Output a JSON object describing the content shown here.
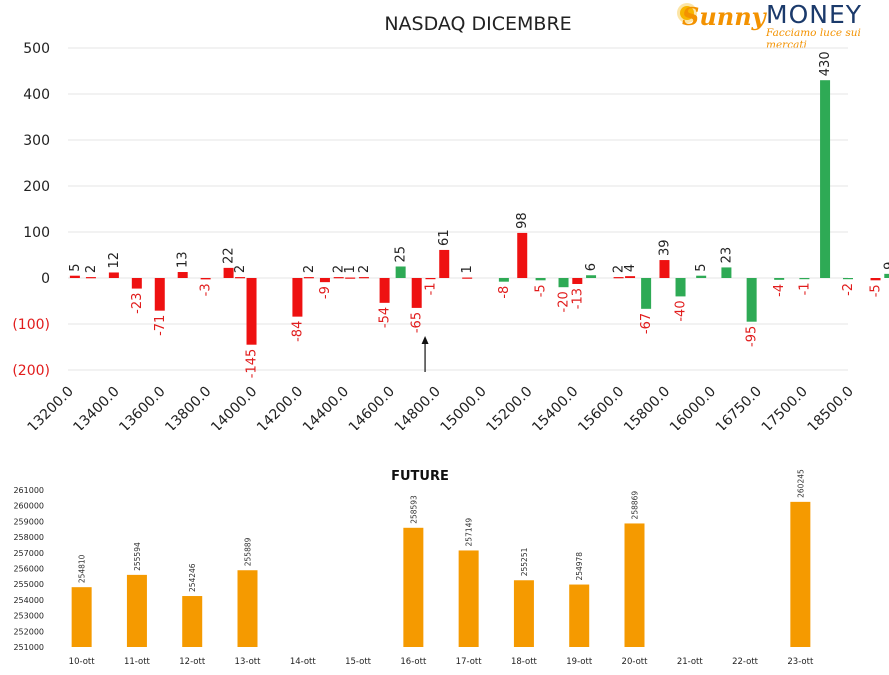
{
  "logo": {
    "script": "Sunny",
    "word": "MONEY",
    "tagline": "Facciamo luce sui mercati"
  },
  "colors": {
    "positive": "#2eaa55",
    "negative": "#ee1111",
    "future": "#f59a00",
    "grid": "#e6e6e6",
    "neg_tick": "#e11c1c"
  },
  "annotation": {
    "arrow": "up-arrow",
    "at_strike": "14800.0"
  },
  "chart_data": [
    {
      "type": "bar",
      "title": "NASDAQ DICEMBRE",
      "ylim": [
        -200,
        500
      ],
      "yticks": [
        {
          "value": 500,
          "label": "500"
        },
        {
          "value": 400,
          "label": "400"
        },
        {
          "value": 300,
          "label": "300"
        },
        {
          "value": 200,
          "label": "200"
        },
        {
          "value": 100,
          "label": "100"
        },
        {
          "value": 0,
          "label": "0"
        },
        {
          "value": -100,
          "label": "(100)"
        },
        {
          "value": -200,
          "label": "(200)"
        }
      ],
      "grid": true,
      "x_tick_labels": [
        "13200.0",
        "13400.0",
        "13600.0",
        "13800.0",
        "14000.0",
        "14200.0",
        "14400.0",
        "14600.0",
        "14800.0",
        "15000.0",
        "15200.0",
        "15400.0",
        "15600.0",
        "15800.0",
        "16000.0",
        "16750.0",
        "17500.0",
        "18500.0"
      ],
      "bars": [
        {
          "pos": 0.15,
          "value": 5,
          "label": "5",
          "color": "red"
        },
        {
          "pos": 0.5,
          "value": 2,
          "label": "2",
          "color": "red"
        },
        {
          "pos": 1.0,
          "value": 12,
          "label": "12",
          "color": "red"
        },
        {
          "pos": 1.5,
          "value": -23,
          "label": "-23",
          "color": "red"
        },
        {
          "pos": 2.0,
          "value": -71,
          "label": "-71",
          "color": "red"
        },
        {
          "pos": 2.5,
          "value": 13,
          "label": "13",
          "color": "red"
        },
        {
          "pos": 3.0,
          "value": -3,
          "label": "-3",
          "color": "red"
        },
        {
          "pos": 3.5,
          "value": 22,
          "label": "22",
          "color": "red"
        },
        {
          "pos": 3.75,
          "value": 2,
          "label": "2",
          "color": "red"
        },
        {
          "pos": 4.0,
          "value": -145,
          "label": "-145",
          "color": "red"
        },
        {
          "pos": 5.0,
          "value": -84,
          "label": "-84",
          "color": "red"
        },
        {
          "pos": 5.25,
          "value": 2,
          "label": "2",
          "color": "red"
        },
        {
          "pos": 5.6,
          "value": -9,
          "label": "-9",
          "color": "red"
        },
        {
          "pos": 5.9,
          "value": 2,
          "label": "2",
          "color": "red"
        },
        {
          "pos": 6.15,
          "value": 1,
          "label": "1",
          "color": "red"
        },
        {
          "pos": 6.45,
          "value": 2,
          "label": "2",
          "color": "red"
        },
        {
          "pos": 6.9,
          "value": -54,
          "label": "-54",
          "color": "red"
        },
        {
          "pos": 7.25,
          "value": 25,
          "label": "25",
          "color": "green"
        },
        {
          "pos": 7.6,
          "value": -65,
          "label": "-65",
          "color": "red"
        },
        {
          "pos": 7.9,
          "value": -1,
          "label": "-1",
          "color": "red"
        },
        {
          "pos": 8.2,
          "value": 61,
          "label": "61",
          "color": "red"
        },
        {
          "pos": 8.7,
          "value": 1,
          "label": "1",
          "color": "red"
        },
        {
          "pos": 9.5,
          "value": -8,
          "label": "-8",
          "color": "green"
        },
        {
          "pos": 9.9,
          "value": 98,
          "label": "98",
          "color": "red"
        },
        {
          "pos": 10.3,
          "value": -5,
          "label": "-5",
          "color": "green"
        },
        {
          "pos": 10.8,
          "value": -20,
          "label": "-20",
          "color": "green"
        },
        {
          "pos": 11.1,
          "value": -13,
          "label": "-13",
          "color": "red"
        },
        {
          "pos": 11.4,
          "value": 6,
          "label": "6",
          "color": "green"
        },
        {
          "pos": 12.0,
          "value": 2,
          "label": "2",
          "color": "red"
        },
        {
          "pos": 12.25,
          "value": 4,
          "label": "4",
          "color": "red"
        },
        {
          "pos": 12.6,
          "value": -67,
          "label": "-67",
          "color": "green"
        },
        {
          "pos": 13.0,
          "value": 39,
          "label": "39",
          "color": "red"
        },
        {
          "pos": 13.35,
          "value": -40,
          "label": "-40",
          "color": "green"
        },
        {
          "pos": 13.8,
          "value": 5,
          "label": "5",
          "color": "green"
        },
        {
          "pos": 14.35,
          "value": 23,
          "label": "23",
          "color": "green"
        },
        {
          "pos": 14.9,
          "value": -95,
          "label": "-95",
          "color": "green"
        },
        {
          "pos": 15.5,
          "value": -4,
          "label": "-4",
          "color": "green"
        },
        {
          "pos": 16.05,
          "value": -1,
          "label": "-1",
          "color": "green"
        },
        {
          "pos": 16.5,
          "value": 430,
          "label": "430",
          "color": "green"
        },
        {
          "pos": 17.0,
          "value": -2,
          "label": "-2",
          "color": "green"
        },
        {
          "pos": 17.6,
          "value": -5,
          "label": "-5",
          "color": "red"
        },
        {
          "pos": 17.9,
          "value": 9,
          "label": "9",
          "color": "green"
        }
      ]
    },
    {
      "type": "bar",
      "title": "FUTURE",
      "ylim": [
        251000,
        261000
      ],
      "yticks": [
        "261000",
        "260000",
        "259000",
        "258000",
        "257000",
        "256000",
        "255000",
        "254000",
        "253000",
        "252000",
        "251000"
      ],
      "categories": [
        "10-ott",
        "11-ott",
        "12-ott",
        "13-ott",
        "14-ott",
        "15-ott",
        "16-ott",
        "17-ott",
        "18-ott",
        "19-ott",
        "20-ott",
        "21-ott",
        "22-ott",
        "23-ott"
      ],
      "values": [
        254810,
        255594,
        254246,
        255889,
        null,
        null,
        258593,
        257149,
        255251,
        254978,
        258869,
        null,
        null,
        260245
      ]
    }
  ]
}
